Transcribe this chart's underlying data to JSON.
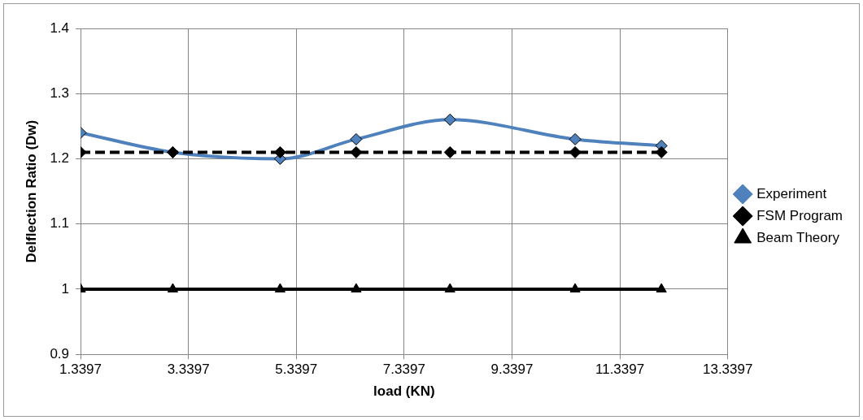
{
  "chart_data": {
    "type": "line",
    "xlabel": "load (KN)",
    "ylabel": "Delflection Ratio (Dw)",
    "x": [
      1.3397,
      3.05,
      5.04,
      6.45,
      8.19,
      10.51,
      12.11
    ],
    "series": [
      {
        "name": "Experiment",
        "color": "#4f81bd",
        "values": [
          1.24,
          1.21,
          1.2,
          1.23,
          1.26,
          1.23,
          1.22
        ],
        "marker": "diamond",
        "line_style": "solid"
      },
      {
        "name": "FSM Program",
        "color": "#000000",
        "values": [
          1.21,
          1.21,
          1.21,
          1.21,
          1.21,
          1.21,
          1.21
        ],
        "marker": "diamond",
        "line_style": "dashed"
      },
      {
        "name": "Beam Theory",
        "color": "#000000",
        "values": [
          1,
          1,
          1,
          1,
          1,
          1,
          1
        ],
        "marker": "triangle",
        "line_style": "solid"
      }
    ],
    "xlim": [
      1.3397,
      13.3397
    ],
    "xticks": [
      1.3397,
      3.3397,
      5.3397,
      7.3397,
      9.3397,
      11.3397,
      13.3397
    ],
    "ylim": [
      0.9,
      1.4
    ],
    "yticks": [
      0.9,
      1,
      1.1,
      1.2,
      1.3,
      1.4
    ],
    "grid": true,
    "legend": "right"
  }
}
